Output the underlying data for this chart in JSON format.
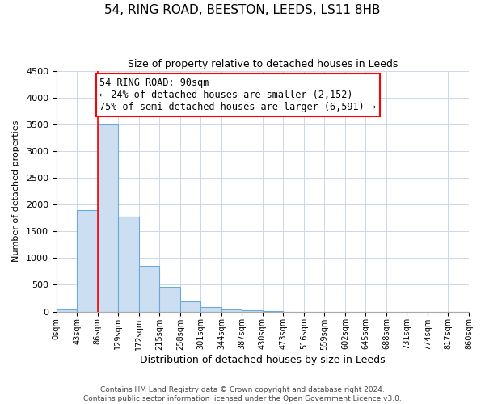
{
  "title": "54, RING ROAD, BEESTON, LEEDS, LS11 8HB",
  "subtitle": "Size of property relative to detached houses in Leeds",
  "xlabel": "Distribution of detached houses by size in Leeds",
  "ylabel": "Number of detached properties",
  "bin_labels": [
    "0sqm",
    "43sqm",
    "86sqm",
    "129sqm",
    "172sqm",
    "215sqm",
    "258sqm",
    "301sqm",
    "344sqm",
    "387sqm",
    "430sqm",
    "473sqm",
    "516sqm",
    "559sqm",
    "602sqm",
    "645sqm",
    "688sqm",
    "731sqm",
    "774sqm",
    "817sqm",
    "860sqm"
  ],
  "bar_heights": [
    40,
    1900,
    3500,
    1780,
    860,
    460,
    185,
    90,
    40,
    20,
    5,
    0,
    0,
    0,
    0,
    0,
    0,
    0,
    0,
    0
  ],
  "bar_color": "#ccdff2",
  "bar_edge_color": "#6aaad4",
  "red_line_bin": 2,
  "ylim": [
    0,
    4500
  ],
  "yticks": [
    0,
    500,
    1000,
    1500,
    2000,
    2500,
    3000,
    3500,
    4000,
    4500
  ],
  "annotation_title": "54 RING ROAD: 90sqm",
  "annotation_line1": "← 24% of detached houses are smaller (2,152)",
  "annotation_line2": "75% of semi-detached houses are larger (6,591) →",
  "footer_line1": "Contains HM Land Registry data © Crown copyright and database right 2024.",
  "footer_line2": "Contains public sector information licensed under the Open Government Licence v3.0.",
  "grid_color": "#cdd8e8",
  "background_color": "#ffffff",
  "title_fontsize": 11,
  "subtitle_fontsize": 9,
  "xlabel_fontsize": 9,
  "ylabel_fontsize": 8,
  "tick_fontsize": 8,
  "xtick_fontsize": 7,
  "annotation_fontsize": 8.5,
  "footer_fontsize": 6.5
}
